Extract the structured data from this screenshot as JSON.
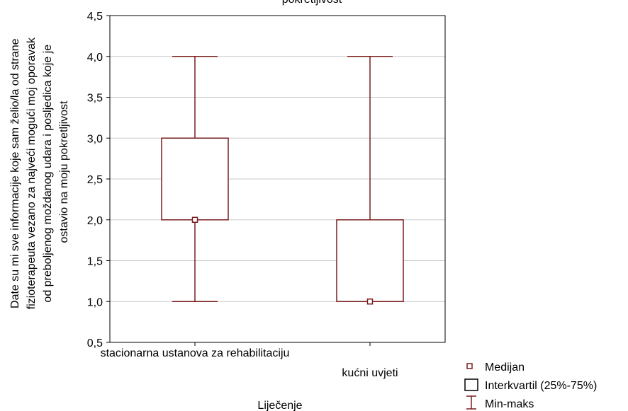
{
  "chart_data": {
    "type": "boxplot",
    "title": "pokretljivost",
    "xlabel": "Liječenje",
    "ylabel_lines": [
      "Date su mi sve informacije koje sam želio/la od strane",
      "fizioterapeuta vezano za najveći mogući moj oporavak",
      "od preboljenog moždanog udara i posljedica koje je",
      "ostavio na moju pokretljivost"
    ],
    "ylim": [
      0.5,
      4.5
    ],
    "yticks": [
      0.5,
      1.0,
      1.5,
      2.0,
      2.5,
      3.0,
      3.5,
      4.0,
      4.5
    ],
    "ytick_labels": [
      "0,5",
      "1,0",
      "1,5",
      "2,0",
      "2,5",
      "3,0",
      "3,5",
      "4,0",
      "4,5"
    ],
    "grid": true,
    "categories": [
      "stacionarna ustanova za rehabilitaciju",
      "kućni uvjeti"
    ],
    "boxes": [
      {
        "min": 1.0,
        "q1": 2.0,
        "median": 2.0,
        "q3": 3.0,
        "max": 4.0
      },
      {
        "min": 1.0,
        "q1": 1.0,
        "median": 1.0,
        "q3": 2.0,
        "max": 4.0
      }
    ],
    "legend": {
      "placement": "bottom-right",
      "items": [
        "Medijan",
        "Interkvartil (25%-75%)",
        "Min-maks"
      ]
    },
    "colors": {
      "box": "#7a1e1e",
      "grid": "#c8c8c8",
      "axis": "#000000"
    }
  }
}
